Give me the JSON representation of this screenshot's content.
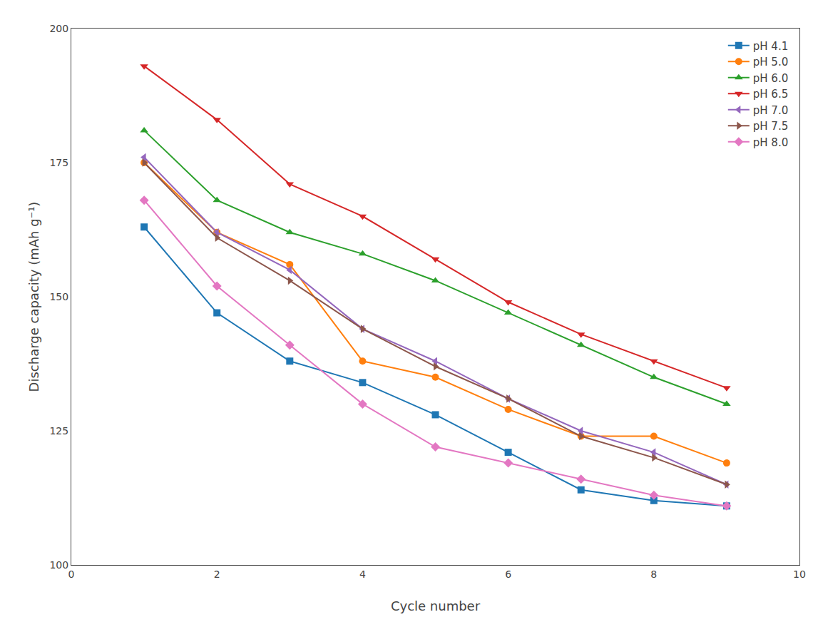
{
  "chart_data": {
    "type": "line",
    "xlabel": "Cycle number",
    "ylabel": "Discharge capacity (mAh g⁻¹)",
    "x": [
      1,
      2,
      3,
      4,
      5,
      6,
      7,
      8,
      9
    ],
    "series": [
      {
        "name": "pH 4.1",
        "marker": "square",
        "values": [
          163,
          147,
          138,
          134,
          128,
          121,
          114,
          112,
          111
        ]
      },
      {
        "name": "pH 5.0",
        "marker": "circle",
        "values": [
          175,
          162,
          156,
          138,
          135,
          129,
          124,
          124,
          119
        ]
      },
      {
        "name": "pH 6.0",
        "marker": "triangle-up",
        "values": [
          181,
          168,
          162,
          158,
          153,
          147,
          141,
          135,
          130
        ]
      },
      {
        "name": "pH 6.5",
        "marker": "triangle-down",
        "values": [
          193,
          183,
          171,
          165,
          157,
          149,
          143,
          138,
          133
        ]
      },
      {
        "name": "pH 7.0",
        "marker": "triangle-left",
        "values": [
          176,
          162,
          155,
          144,
          138,
          131,
          125,
          121,
          115
        ]
      },
      {
        "name": "pH 7.5",
        "marker": "triangle-right",
        "values": [
          175,
          161,
          153,
          144,
          137,
          131,
          124,
          120,
          115
        ]
      },
      {
        "name": "pH 8.0",
        "marker": "diamond",
        "values": [
          168,
          152,
          141,
          130,
          122,
          119,
          116,
          113,
          111
        ]
      }
    ],
    "xlim": [
      0,
      10
    ],
    "xticks": [
      0,
      2,
      4,
      6,
      8,
      10
    ],
    "ylim": [
      100,
      200
    ],
    "yticks": [
      100,
      125,
      150,
      175,
      200
    ],
    "grid": false,
    "legend": "upper right"
  }
}
